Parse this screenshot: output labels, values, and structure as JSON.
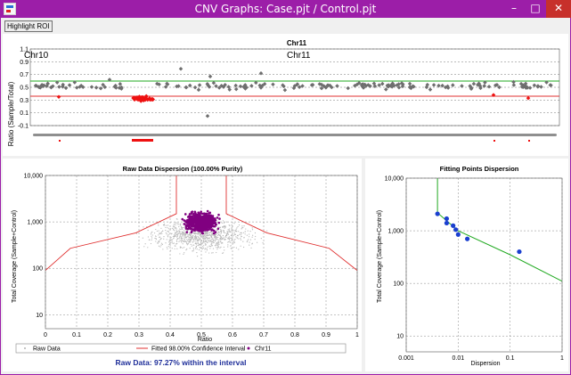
{
  "window": {
    "title": "CNV Graphs: Case.pjt / Control.pjt",
    "minimize_glyph": "–",
    "maximize_glyph": "□",
    "close_glyph": "✕"
  },
  "toolbar": {
    "highlight_roi_label": "Highlight ROI"
  },
  "chr_chart": {
    "title": "Chr11",
    "ylabel": "Ratio (Sample/Total)",
    "left_chrom_label": "Chr10",
    "center_chrom_label": "Chr11",
    "y_ticks": [
      "1.1",
      "0.9",
      "0.7",
      "0.5",
      "0.3",
      "0.1",
      "-0.1"
    ],
    "colors": {
      "normal": "#6e6e6e",
      "roi": "#ee1111",
      "upper_line": "#22aa22",
      "lower_line": "#e03030"
    }
  },
  "dispersion_chart": {
    "title": "Raw Data Dispersion (100.00% Purity)",
    "xlabel": "Ratio",
    "ylabel": "Total Coverage (Sample+Control)",
    "x_ticks": [
      "0",
      "0.1",
      "0.2",
      "0.3",
      "0.4",
      "0.5",
      "0.6",
      "0.7",
      "0.8",
      "0.9",
      "1"
    ],
    "y_ticks": [
      "10,000",
      "1,000",
      "100",
      "10"
    ],
    "legend": [
      "Raw Data",
      "Fitted 98.00% Confidence Interval",
      "Chr11"
    ],
    "footer": "Raw Data: 97.27% within the interval",
    "colors": {
      "raw": "#b8b8b8",
      "chr11": "#800080",
      "interval": "#e03030"
    }
  },
  "fitting_chart": {
    "title": "Fitting Points Dispersion",
    "xlabel": "Dispersion",
    "ylabel": "Total Coverage (Sample+Control)",
    "x_ticks": [
      "0.001",
      "0.01",
      "0.1",
      "1"
    ],
    "y_ticks": [
      "10,000",
      "1,000",
      "100",
      "10"
    ],
    "colors": {
      "points": "#1a3fd0",
      "fit_line": "#22aa22"
    }
  },
  "chart_data": [
    {
      "type": "scatter",
      "title": "Chr11",
      "ylabel": "Ratio (Sample/Total)",
      "ylim": [
        -0.1,
        1.1
      ],
      "notes_visible": [
        "Chr10",
        "Chr11"
      ],
      "series": [
        {
          "name": "normal",
          "typical_y_range": [
            0.45,
            0.6
          ],
          "mean_y": 0.52
        },
        {
          "name": "roi",
          "typical_y_range": [
            0.25,
            0.38
          ],
          "mean_y": 0.32
        }
      ]
    },
    {
      "type": "scatter",
      "title": "Raw Data Dispersion (100.00% Purity)",
      "xlabel": "Ratio",
      "ylabel": "Total Coverage (Sample+Control)",
      "xlim": [
        0,
        1
      ],
      "ylim": [
        5,
        10000
      ],
      "y_scale": "log",
      "legend": [
        "Raw Data",
        "Fitted 98.00% Confidence Interval",
        "Chr11"
      ],
      "interval_lower_x": [
        0.0,
        0.08,
        0.29,
        0.42,
        0.42
      ],
      "interval_lower_y": [
        90,
        270,
        580,
        1500,
        10000
      ],
      "interval_upper_x": [
        0.58,
        0.58,
        0.71,
        0.91,
        1.0
      ],
      "interval_upper_y": [
        10000,
        1500,
        580,
        270,
        90
      ],
      "chr11_center": {
        "x": 0.5,
        "y": 1000
      }
    },
    {
      "type": "scatter",
      "title": "Fitting Points Dispersion",
      "xlabel": "Dispersion",
      "ylabel": "Total Coverage (Sample+Control)",
      "xlim": [
        0.001,
        1
      ],
      "ylim": [
        5,
        10000
      ],
      "x_scale": "log",
      "y_scale": "log",
      "series": [
        {
          "name": "points",
          "x": [
            0.004,
            0.006,
            0.006,
            0.008,
            0.009,
            0.01,
            0.015,
            0.15
          ],
          "y": [
            2100,
            1700,
            1400,
            1250,
            1050,
            850,
            700,
            400
          ]
        },
        {
          "name": "fit",
          "x": [
            0.004,
            0.004,
            0.01,
            0.1,
            1
          ],
          "y": [
            10000,
            2200,
            1000,
            350,
            110
          ]
        }
      ]
    }
  ]
}
